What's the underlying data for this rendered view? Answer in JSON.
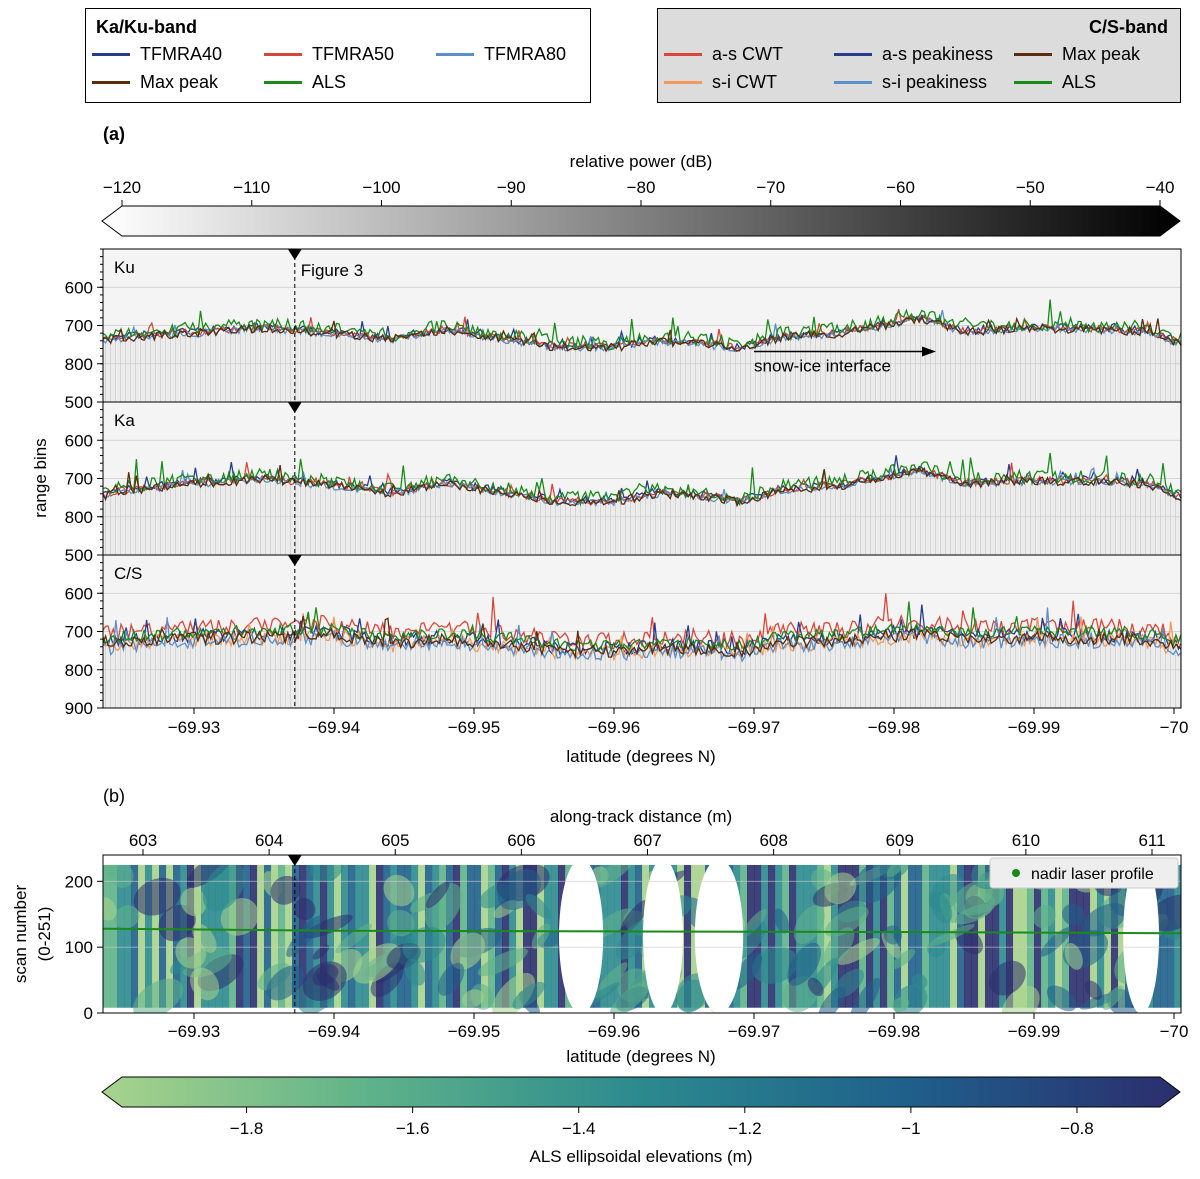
{
  "legend_kaku": {
    "title": "Ka/Ku-band",
    "items": [
      {
        "label": "TFMRA40",
        "color": "#263d8f"
      },
      {
        "label": "TFMRA50",
        "color": "#d9473a"
      },
      {
        "label": "TFMRA80",
        "color": "#5b8fc7"
      },
      {
        "label": "Max peak",
        "color": "#5a2d0c"
      },
      {
        "label": "ALS",
        "color": "#1a8a1a"
      }
    ]
  },
  "legend_cs": {
    "title": "C/S-band",
    "items": [
      {
        "label": "a-s CWT",
        "color": "#d9473a"
      },
      {
        "label": "a-s peakiness",
        "color": "#263d8f"
      },
      {
        "label": "Max peak",
        "color": "#5a2d0c"
      },
      {
        "label": "s-i CWT",
        "color": "#f29a5c"
      },
      {
        "label": "s-i peakiness",
        "color": "#5b8fc7"
      },
      {
        "label": "ALS",
        "color": "#1a8a1a"
      }
    ]
  },
  "chart_data": [
    {
      "type": "heatmap",
      "panel_label": "(a)",
      "colorbar": {
        "label": "relative power (dB)",
        "range": [
          -120,
          -40
        ],
        "ticks": [
          "−120",
          "−110",
          "−100",
          "−90",
          "−80",
          "−70",
          "−60",
          "−50",
          "−40"
        ],
        "colors": [
          "#ffffff",
          "#000000"
        ]
      },
      "ylabel": "range bins",
      "xlabel": "latitude (degrees N)",
      "xlim": [
        -69.9235,
        -70.0005
      ],
      "x_ticks": [
        -69.93,
        -69.94,
        -69.95,
        -69.96,
        -69.97,
        -69.98,
        -69.99,
        -70.0
      ],
      "x_tick_labels": [
        "−69.93",
        "−69.94",
        "−69.95",
        "−69.96",
        "−69.97",
        "−69.98",
        "−69.99",
        "−70"
      ],
      "marker": {
        "x": -69.9372,
        "label": "Figure 3"
      },
      "annotation": {
        "text": "snow-ice interface",
        "x_start": -69.97,
        "x_end": -69.983,
        "y": 768
      },
      "subpanels": [
        {
          "name": "Ku",
          "ylim": [
            900,
            500
          ],
          "y_ticks": [
            600,
            700,
            800
          ],
          "y_tick_labels": [
            "600",
            "700",
            "800"
          ],
          "baseline": [
            [
              -69.9235,
              740
            ],
            [
              -69.925,
              730
            ],
            [
              -69.93,
              718
            ],
            [
              -69.935,
              705
            ],
            [
              -69.94,
              720
            ],
            [
              -69.944,
              735
            ],
            [
              -69.948,
              710
            ],
            [
              -69.953,
              740
            ],
            [
              -69.956,
              755
            ],
            [
              -69.96,
              755
            ],
            [
              -69.963,
              740
            ],
            [
              -69.966,
              745
            ],
            [
              -69.969,
              760
            ],
            [
              -69.972,
              730
            ],
            [
              -69.976,
              720
            ],
            [
              -69.979,
              700
            ],
            [
              -69.982,
              680
            ],
            [
              -69.985,
              715
            ],
            [
              -69.99,
              705
            ],
            [
              -69.995,
              710
            ],
            [
              -69.998,
              715
            ],
            [
              -70.0005,
              745
            ]
          ],
          "series": [
            {
              "name": "TFMRA40",
              "offset": -3,
              "noise": 10,
              "seed": 11
            },
            {
              "name": "TFMRA50",
              "offset": -1,
              "noise": 9,
              "seed": 12
            },
            {
              "name": "TFMRA80",
              "offset": 3,
              "noise": 9,
              "seed": 13
            },
            {
              "name": "ALS",
              "offset": -10,
              "noise": 18,
              "seed": 14
            },
            {
              "name": "Max peak",
              "offset": 2,
              "noise": 11,
              "seed": 15
            }
          ]
        },
        {
          "name": "Ka",
          "ylim": [
            900,
            500
          ],
          "y_ticks": [
            500,
            600,
            700,
            800
          ],
          "y_tick_labels": [
            "500",
            "600",
            "700",
            "800"
          ],
          "baseline": [
            [
              -69.9235,
              745
            ],
            [
              -69.925,
              732
            ],
            [
              -69.93,
              712
            ],
            [
              -69.935,
              700
            ],
            [
              -69.94,
              718
            ],
            [
              -69.944,
              738
            ],
            [
              -69.948,
              712
            ],
            [
              -69.953,
              742
            ],
            [
              -69.956,
              760
            ],
            [
              -69.96,
              760
            ],
            [
              -69.963,
              738
            ],
            [
              -69.966,
              742
            ],
            [
              -69.969,
              760
            ],
            [
              -69.972,
              728
            ],
            [
              -69.976,
              718
            ],
            [
              -69.979,
              698
            ],
            [
              -69.982,
              678
            ],
            [
              -69.985,
              712
            ],
            [
              -69.99,
              705
            ],
            [
              -69.995,
              708
            ],
            [
              -69.998,
              712
            ],
            [
              -70.0005,
              750
            ]
          ],
          "series": [
            {
              "name": "TFMRA40",
              "offset": -3,
              "noise": 10,
              "seed": 21
            },
            {
              "name": "TFMRA50",
              "offset": -1,
              "noise": 10,
              "seed": 22
            },
            {
              "name": "TFMRA80",
              "offset": 3,
              "noise": 9,
              "seed": 23
            },
            {
              "name": "ALS",
              "offset": -10,
              "noise": 18,
              "seed": 24
            },
            {
              "name": "Max peak",
              "offset": 2,
              "noise": 11,
              "seed": 25
            }
          ]
        },
        {
          "name": "C/S",
          "ylim": [
            900,
            500
          ],
          "y_ticks": [
            500,
            600,
            700,
            800,
            900
          ],
          "y_tick_labels": [
            "500",
            "600",
            "700",
            "800",
            "900"
          ],
          "baseline": [
            [
              -69.9235,
              730
            ],
            [
              -69.925,
              720
            ],
            [
              -69.93,
              710
            ],
            [
              -69.935,
              708
            ],
            [
              -69.94,
              700
            ],
            [
              -69.944,
              725
            ],
            [
              -69.948,
              712
            ],
            [
              -69.953,
              730
            ],
            [
              -69.956,
              742
            ],
            [
              -69.96,
              745
            ],
            [
              -69.963,
              735
            ],
            [
              -69.966,
              738
            ],
            [
              -69.969,
              745
            ],
            [
              -69.972,
              720
            ],
            [
              -69.976,
              718
            ],
            [
              -69.979,
              705
            ],
            [
              -69.982,
              700
            ],
            [
              -69.985,
              712
            ],
            [
              -69.99,
              708
            ],
            [
              -69.995,
              710
            ],
            [
              -69.998,
              712
            ],
            [
              -70.0005,
              735
            ]
          ],
          "series": [
            {
              "name": "a-s CWT",
              "offset": -22,
              "noise": 22,
              "seed": 31
            },
            {
              "name": "a-s peakiness",
              "offset": 0,
              "noise": 18,
              "seed": 32
            },
            {
              "name": "s-i CWT",
              "offset": 12,
              "noise": 20,
              "seed": 33
            },
            {
              "name": "s-i peakiness",
              "offset": 16,
              "noise": 18,
              "seed": 34
            },
            {
              "name": "ALS",
              "offset": -8,
              "noise": 16,
              "seed": 35
            },
            {
              "name": "Max peak",
              "offset": 8,
              "noise": 16,
              "seed": 36
            }
          ]
        }
      ]
    },
    {
      "type": "heatmap",
      "panel_label": "(b)",
      "ylabel": "scan number",
      "ylabel2": "(0-251)",
      "xlabel": "latitude (degrees N)",
      "xlim": [
        -69.9235,
        -70.0005
      ],
      "ylim": [
        0,
        240
      ],
      "y_ticks": [
        0,
        100,
        200
      ],
      "y_tick_labels": [
        "0",
        "100",
        "200"
      ],
      "x_ticks": [
        -69.93,
        -69.94,
        -69.95,
        -69.96,
        -69.97,
        -69.98,
        -69.99,
        -70.0
      ],
      "x_tick_labels": [
        "−69.93",
        "−69.94",
        "−69.95",
        "−69.96",
        "−69.97",
        "−69.98",
        "−69.99",
        "−70"
      ],
      "top_axis": {
        "label": "along-track distance (m)",
        "ticks": [
          "603",
          "604",
          "605",
          "606",
          "607",
          "608",
          "609",
          "610",
          "611"
        ]
      },
      "gaps": [
        [
          -69.9565,
          -69.9588
        ],
        [
          -69.9625,
          -69.9645
        ],
        [
          -69.9662,
          -69.9688
        ],
        [
          -69.9968,
          -69.9985
        ]
      ],
      "legend": {
        "label": "nadir laser profile",
        "color": "#1a8a1a"
      },
      "nadir_profile": [
        [
          -69.9235,
          128
        ],
        [
          -69.94,
          125
        ],
        [
          -69.96,
          124
        ],
        [
          -69.98,
          123
        ],
        [
          -70.0005,
          121
        ]
      ],
      "colorbar": {
        "label": "ALS ellipsoidal elevations (m)",
        "range": [
          -1.95,
          -0.7
        ],
        "ticks": [
          "−1.8",
          "−1.6",
          "−1.4",
          "−1.2",
          "−1",
          "−0.8"
        ],
        "tick_values": [
          -1.8,
          -1.6,
          -1.4,
          -1.2,
          -1.0,
          -0.8
        ],
        "colors": [
          "#a8d38d",
          "#5eb28a",
          "#2b8a8e",
          "#1f5f8b",
          "#2b2e6e"
        ]
      }
    }
  ]
}
